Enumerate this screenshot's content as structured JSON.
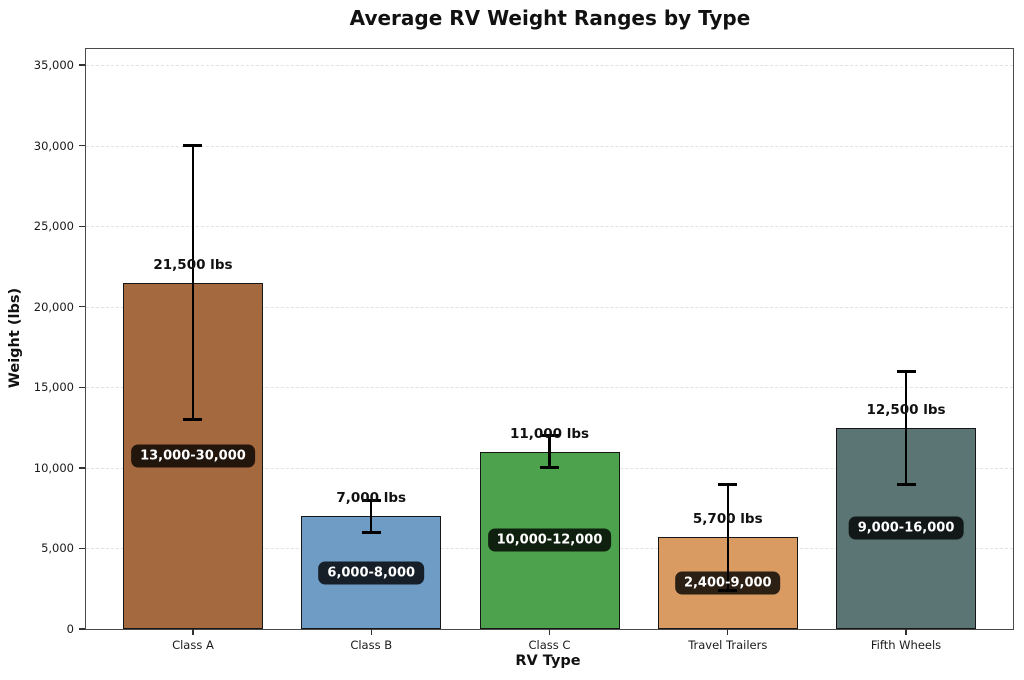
{
  "chart_data": {
    "type": "bar",
    "title": "Average RV Weight Ranges by Type",
    "xlabel": "RV Type",
    "ylabel": "Weight (lbs)",
    "categories": [
      "Class A",
      "Class B",
      "Class C",
      "Travel Trailers",
      "Fifth Wheels"
    ],
    "values": [
      21500,
      7000,
      11000,
      5700,
      12500
    ],
    "value_labels": [
      "21,500 lbs",
      "7,000 lbs",
      "11,000 lbs",
      "5,700 lbs",
      "12,500 lbs"
    ],
    "error_low": [
      13000,
      6000,
      10000,
      2400,
      9000
    ],
    "error_high": [
      30000,
      8000,
      12000,
      9000,
      16000
    ],
    "range_labels": [
      "13,000-30,000",
      "6,000-8,000",
      "10,000-12,000",
      "2,400-9,000",
      "9,000-16,000"
    ],
    "bar_colors": [
      "#A5693F",
      "#6E9CC5",
      "#4DA24D",
      "#D99B62",
      "#5B7574"
    ],
    "bar_edge_color": "#161616",
    "error_bar_color": "#000000",
    "badge_bg": "rgba(0,0,0,0.8)",
    "badge_text_color": "#ffffff",
    "ylim": [
      0,
      36000
    ],
    "yticks": [
      0,
      5000,
      10000,
      15000,
      20000,
      25000,
      30000,
      35000
    ],
    "ytick_labels": [
      "0",
      "5,000",
      "10,000",
      "15,000",
      "20,000",
      "25,000",
      "30,000",
      "35,000"
    ],
    "grid": true,
    "grid_style": "dashed",
    "legend": "none"
  }
}
